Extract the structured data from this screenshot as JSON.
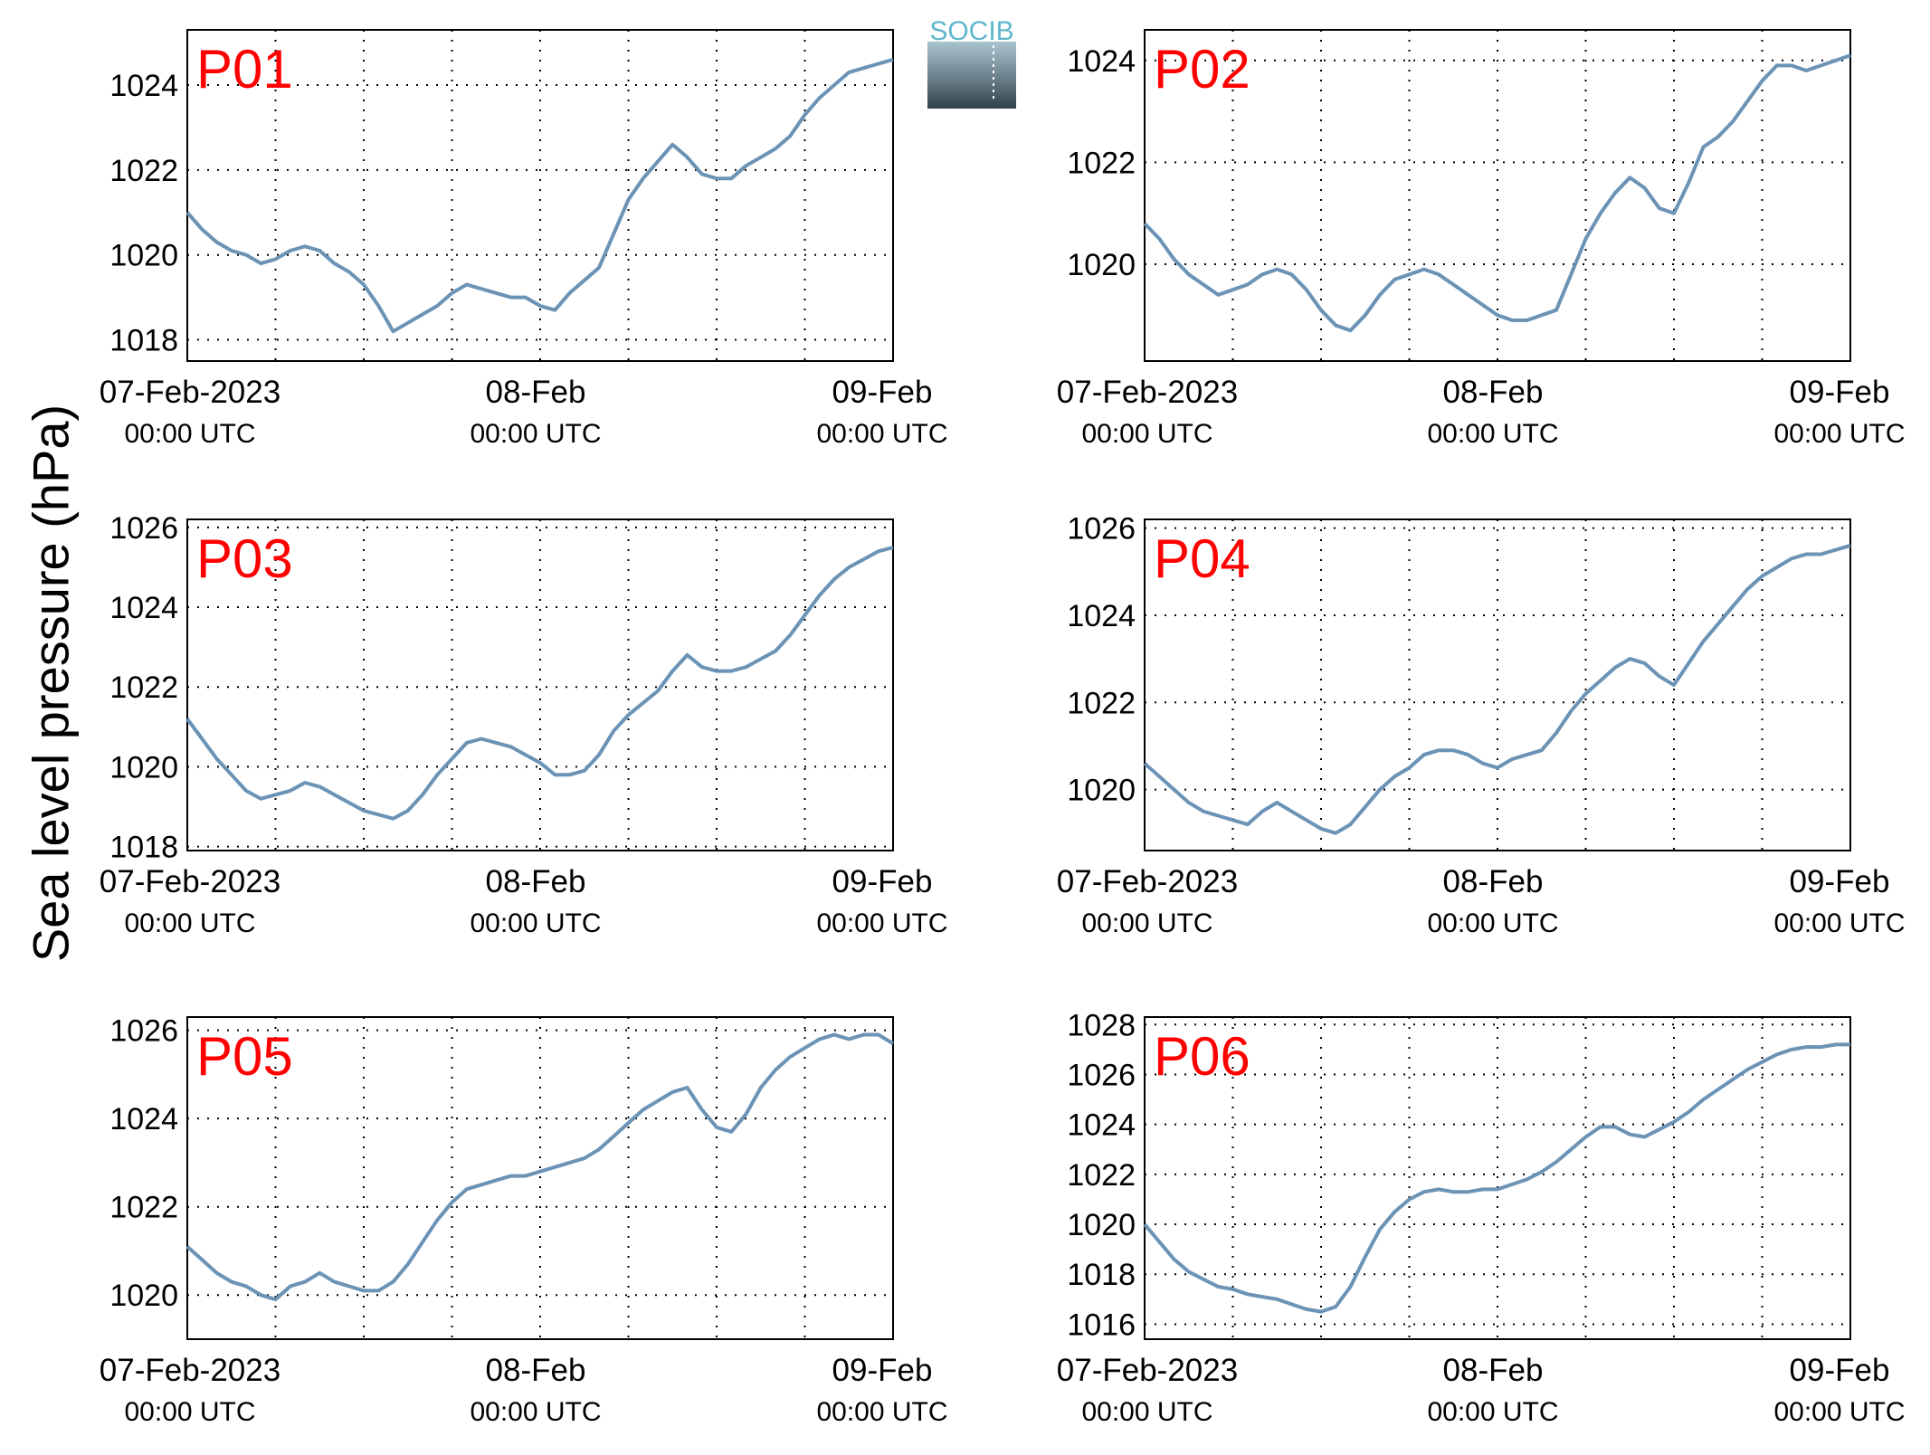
{
  "figure": {
    "ylabel": "Sea level pressure (hPa)",
    "logo_text": "SOCIB",
    "line_color": "#6b93b5",
    "label_color": "#ff0000",
    "x_tick_dates": [
      "07-Feb-2023",
      "08-Feb",
      "09-Feb"
    ],
    "x_tick_times": [
      "00:00 UTC",
      "00:00 UTC",
      "00:00 UTC"
    ]
  },
  "chart_data": [
    {
      "type": "line",
      "label": "P01",
      "xlim": [
        0,
        48
      ],
      "ylim": [
        1017.5,
        1025.3
      ],
      "yticks": [
        1018,
        1020,
        1022,
        1024
      ],
      "grid": true,
      "x": [
        0,
        1,
        2,
        3,
        4,
        5,
        6,
        7,
        8,
        9,
        10,
        11,
        12,
        13,
        14,
        15,
        16,
        17,
        18,
        19,
        20,
        21,
        22,
        23,
        24,
        25,
        26,
        27,
        28,
        29,
        30,
        31,
        32,
        33,
        34,
        35,
        36,
        37,
        38,
        39,
        40,
        41,
        42,
        43,
        44,
        45,
        46,
        47,
        48
      ],
      "y": [
        1021.0,
        1020.6,
        1020.3,
        1020.1,
        1020.0,
        1019.8,
        1019.9,
        1020.1,
        1020.2,
        1020.1,
        1019.8,
        1019.6,
        1019.3,
        1018.8,
        1018.2,
        1018.4,
        1018.6,
        1018.8,
        1019.1,
        1019.3,
        1019.2,
        1019.1,
        1019.0,
        1019.0,
        1018.8,
        1018.7,
        1019.1,
        1019.4,
        1019.7,
        1020.5,
        1021.3,
        1021.8,
        1022.2,
        1022.6,
        1022.3,
        1021.9,
        1021.8,
        1021.8,
        1022.1,
        1022.3,
        1022.5,
        1022.8,
        1023.3,
        1023.7,
        1024.0,
        1024.3,
        1024.4,
        1024.5,
        1024.6
      ]
    },
    {
      "type": "line",
      "label": "P02",
      "xlim": [
        0,
        48
      ],
      "ylim": [
        1018.1,
        1024.6
      ],
      "yticks": [
        1020,
        1022,
        1024
      ],
      "grid": true,
      "x": [
        0,
        1,
        2,
        3,
        4,
        5,
        6,
        7,
        8,
        9,
        10,
        11,
        12,
        13,
        14,
        15,
        16,
        17,
        18,
        19,
        20,
        21,
        22,
        23,
        24,
        25,
        26,
        27,
        28,
        29,
        30,
        31,
        32,
        33,
        34,
        35,
        36,
        37,
        38,
        39,
        40,
        41,
        42,
        43,
        44,
        45,
        46,
        47,
        48
      ],
      "y": [
        1020.8,
        1020.5,
        1020.1,
        1019.8,
        1019.6,
        1019.4,
        1019.5,
        1019.6,
        1019.8,
        1019.9,
        1019.8,
        1019.5,
        1019.1,
        1018.8,
        1018.7,
        1019.0,
        1019.4,
        1019.7,
        1019.8,
        1019.9,
        1019.8,
        1019.6,
        1019.4,
        1019.2,
        1019.0,
        1018.9,
        1018.9,
        1019.0,
        1019.1,
        1019.8,
        1020.5,
        1021.0,
        1021.4,
        1021.7,
        1021.5,
        1021.1,
        1021.0,
        1021.6,
        1022.3,
        1022.5,
        1022.8,
        1023.2,
        1023.6,
        1023.9,
        1023.9,
        1023.8,
        1023.9,
        1024.0,
        1024.1
      ]
    },
    {
      "type": "line",
      "label": "P03",
      "xlim": [
        0,
        48
      ],
      "ylim": [
        1017.9,
        1026.2
      ],
      "yticks": [
        1018,
        1020,
        1022,
        1024,
        1026
      ],
      "grid": true,
      "x": [
        0,
        1,
        2,
        3,
        4,
        5,
        6,
        7,
        8,
        9,
        10,
        11,
        12,
        13,
        14,
        15,
        16,
        17,
        18,
        19,
        20,
        21,
        22,
        23,
        24,
        25,
        26,
        27,
        28,
        29,
        30,
        31,
        32,
        33,
        34,
        35,
        36,
        37,
        38,
        39,
        40,
        41,
        42,
        43,
        44,
        45,
        46,
        47,
        48
      ],
      "y": [
        1021.2,
        1020.7,
        1020.2,
        1019.8,
        1019.4,
        1019.2,
        1019.3,
        1019.4,
        1019.6,
        1019.5,
        1019.3,
        1019.1,
        1018.9,
        1018.8,
        1018.7,
        1018.9,
        1019.3,
        1019.8,
        1020.2,
        1020.6,
        1020.7,
        1020.6,
        1020.5,
        1020.3,
        1020.1,
        1019.8,
        1019.8,
        1019.9,
        1020.3,
        1020.9,
        1021.3,
        1021.6,
        1021.9,
        1022.4,
        1022.8,
        1022.5,
        1022.4,
        1022.4,
        1022.5,
        1022.7,
        1022.9,
        1023.3,
        1023.8,
        1024.3,
        1024.7,
        1025.0,
        1025.2,
        1025.4,
        1025.5
      ]
    },
    {
      "type": "line",
      "label": "P04",
      "xlim": [
        0,
        48
      ],
      "ylim": [
        1018.6,
        1026.2
      ],
      "yticks": [
        1020,
        1022,
        1024,
        1026
      ],
      "grid": true,
      "x": [
        0,
        1,
        2,
        3,
        4,
        5,
        6,
        7,
        8,
        9,
        10,
        11,
        12,
        13,
        14,
        15,
        16,
        17,
        18,
        19,
        20,
        21,
        22,
        23,
        24,
        25,
        26,
        27,
        28,
        29,
        30,
        31,
        32,
        33,
        34,
        35,
        36,
        37,
        38,
        39,
        40,
        41,
        42,
        43,
        44,
        45,
        46,
        47,
        48
      ],
      "y": [
        1020.6,
        1020.3,
        1020.0,
        1019.7,
        1019.5,
        1019.4,
        1019.3,
        1019.2,
        1019.5,
        1019.7,
        1019.5,
        1019.3,
        1019.1,
        1019.0,
        1019.2,
        1019.6,
        1020.0,
        1020.3,
        1020.5,
        1020.8,
        1020.9,
        1020.9,
        1020.8,
        1020.6,
        1020.5,
        1020.7,
        1020.8,
        1020.9,
        1021.3,
        1021.8,
        1022.2,
        1022.5,
        1022.8,
        1023.0,
        1022.9,
        1022.6,
        1022.4,
        1022.9,
        1023.4,
        1023.8,
        1024.2,
        1024.6,
        1024.9,
        1025.1,
        1025.3,
        1025.4,
        1025.4,
        1025.5,
        1025.6
      ]
    },
    {
      "type": "line",
      "label": "P05",
      "xlim": [
        0,
        48
      ],
      "ylim": [
        1019.0,
        1026.3
      ],
      "yticks": [
        1020,
        1022,
        1024,
        1026
      ],
      "grid": true,
      "x": [
        0,
        1,
        2,
        3,
        4,
        5,
        6,
        7,
        8,
        9,
        10,
        11,
        12,
        13,
        14,
        15,
        16,
        17,
        18,
        19,
        20,
        21,
        22,
        23,
        24,
        25,
        26,
        27,
        28,
        29,
        30,
        31,
        32,
        33,
        34,
        35,
        36,
        37,
        38,
        39,
        40,
        41,
        42,
        43,
        44,
        45,
        46,
        47,
        48
      ],
      "y": [
        1021.1,
        1020.8,
        1020.5,
        1020.3,
        1020.2,
        1020.0,
        1019.9,
        1020.2,
        1020.3,
        1020.5,
        1020.3,
        1020.2,
        1020.1,
        1020.1,
        1020.3,
        1020.7,
        1021.2,
        1021.7,
        1022.1,
        1022.4,
        1022.5,
        1022.6,
        1022.7,
        1022.7,
        1022.8,
        1022.9,
        1023.0,
        1023.1,
        1023.3,
        1023.6,
        1023.9,
        1024.2,
        1024.4,
        1024.6,
        1024.7,
        1024.2,
        1023.8,
        1023.7,
        1024.1,
        1024.7,
        1025.1,
        1025.4,
        1025.6,
        1025.8,
        1025.9,
        1025.8,
        1025.9,
        1025.9,
        1025.7
      ]
    },
    {
      "type": "line",
      "label": "P06",
      "xlim": [
        0,
        48
      ],
      "ylim": [
        1015.4,
        1028.3
      ],
      "yticks": [
        1016,
        1018,
        1020,
        1022,
        1024,
        1026,
        1028
      ],
      "grid": true,
      "x": [
        0,
        1,
        2,
        3,
        4,
        5,
        6,
        7,
        8,
        9,
        10,
        11,
        12,
        13,
        14,
        15,
        16,
        17,
        18,
        19,
        20,
        21,
        22,
        23,
        24,
        25,
        26,
        27,
        28,
        29,
        30,
        31,
        32,
        33,
        34,
        35,
        36,
        37,
        38,
        39,
        40,
        41,
        42,
        43,
        44,
        45,
        46,
        47,
        48
      ],
      "y": [
        1020.0,
        1019.3,
        1018.6,
        1018.1,
        1017.8,
        1017.5,
        1017.4,
        1017.2,
        1017.1,
        1017.0,
        1016.8,
        1016.6,
        1016.5,
        1016.7,
        1017.5,
        1018.7,
        1019.8,
        1020.5,
        1021.0,
        1021.3,
        1021.4,
        1021.3,
        1021.3,
        1021.4,
        1021.4,
        1021.6,
        1021.8,
        1022.1,
        1022.5,
        1023.0,
        1023.5,
        1023.9,
        1023.9,
        1023.6,
        1023.5,
        1023.8,
        1024.1,
        1024.5,
        1025.0,
        1025.4,
        1025.8,
        1026.2,
        1026.5,
        1026.8,
        1027.0,
        1027.1,
        1027.1,
        1027.2,
        1027.2
      ]
    }
  ]
}
